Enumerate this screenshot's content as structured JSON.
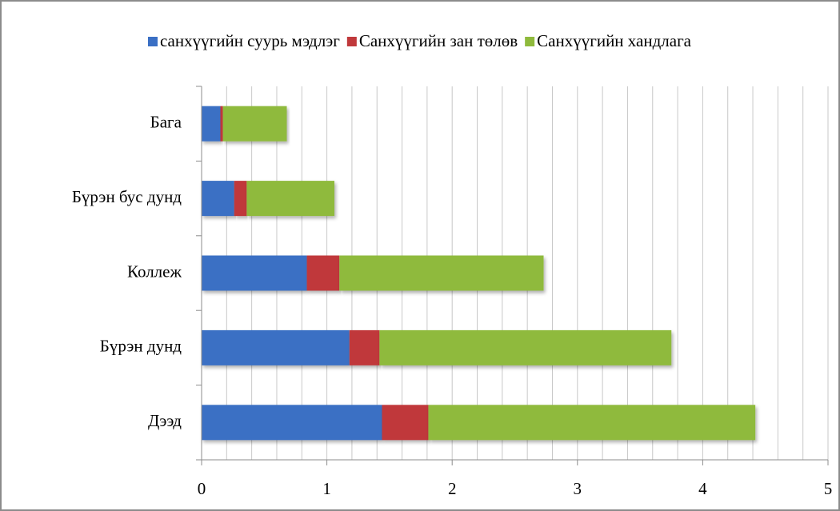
{
  "chart_data": {
    "type": "stacked_barh",
    "categories": [
      "Бага ",
      "Бүрэн бус дунд",
      "Коллеж",
      "Бүрэн дунд",
      "Дээд"
    ],
    "series": [
      {
        "name": "санхүүгийн суурь  мэдлэг",
        "color": "#3a6fc4",
        "values": [
          0.15,
          0.26,
          0.84,
          1.18,
          1.44
        ]
      },
      {
        "name": "Санхүүгийн зан төлөв",
        "color": "#c0393b",
        "values": [
          0.02,
          0.1,
          0.26,
          0.24,
          0.37
        ]
      },
      {
        "name": "Санхүүгийн хандлага",
        "color": "#8fba3c",
        "values": [
          0.51,
          0.7,
          1.63,
          2.33,
          2.61
        ]
      }
    ],
    "xlim": [
      0,
      5
    ],
    "xticks": [
      0,
      1,
      2,
      3,
      4,
      5
    ],
    "xgrid": [
      0.2,
      0.4,
      0.6,
      0.8,
      1,
      1.2,
      1.4,
      1.6,
      1.8,
      2,
      2.2,
      2.4,
      2.6,
      2.8,
      3,
      3.2,
      3.4,
      3.6,
      3.8,
      4,
      4.2,
      4.4,
      4.6,
      4.8,
      5
    ],
    "legend": "top"
  }
}
